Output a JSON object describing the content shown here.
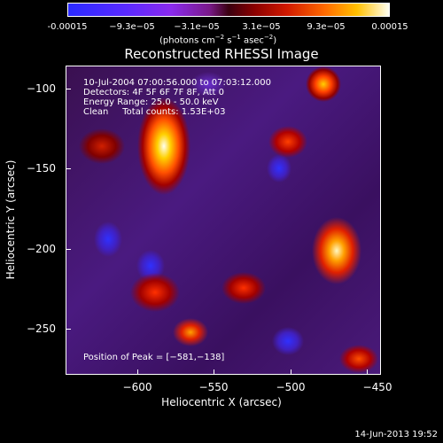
{
  "colorbar": {
    "labels": [
      "-0.00015",
      "−9.3e−05",
      "−3.1e−05",
      "3.1e−05",
      "9.3e−05",
      "0.00015"
    ],
    "units": "(photons cm",
    "units_exp1": "−2",
    "units_mid": " s",
    "units_exp2": "−1",
    "units_mid2": " asec",
    "units_exp3": "−2",
    "units_end": ")"
  },
  "title": "Reconstructed RHESSI Image",
  "info": {
    "line1": "10-Jul-2004 07:00:56.000 to 07:03:12.000",
    "line2": "Detectors: 4F 5F 6F 7F 8F, Att 0",
    "line3": "Energy Range: 25.0 - 50.0 keV",
    "line4": "Clean     Total counts: 1.53E+03",
    "peak": "Position of Peak = [−581,−138]"
  },
  "axes": {
    "x_ticks": [
      "−600",
      "−550",
      "−500",
      "−450"
    ],
    "y_ticks": [
      "−100",
      "−150",
      "−200",
      "−250"
    ],
    "xlabel": "Heliocentric X (arcsec)",
    "ylabel": "Heliocentric Y (arcsec)"
  },
  "footer": {
    "timestamp": "14-Jun-2013 19:52"
  }
}
